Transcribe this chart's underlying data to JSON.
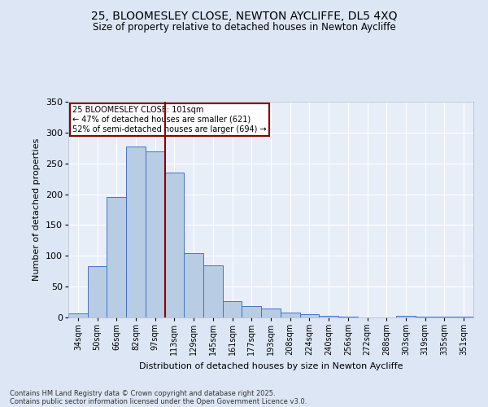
{
  "title_line1": "25, BLOOMESLEY CLOSE, NEWTON AYCLIFFE, DL5 4XQ",
  "title_line2": "Size of property relative to detached houses in Newton Aycliffe",
  "xlabel": "Distribution of detached houses by size in Newton Aycliffe",
  "ylabel": "Number of detached properties",
  "categories": [
    "34sqm",
    "50sqm",
    "66sqm",
    "82sqm",
    "97sqm",
    "113sqm",
    "129sqm",
    "145sqm",
    "161sqm",
    "177sqm",
    "193sqm",
    "208sqm",
    "224sqm",
    "240sqm",
    "256sqm",
    "272sqm",
    "288sqm",
    "303sqm",
    "319sqm",
    "335sqm",
    "351sqm"
  ],
  "values": [
    6,
    83,
    196,
    278,
    270,
    235,
    105,
    84,
    27,
    18,
    14,
    8,
    5,
    3,
    1,
    0,
    0,
    3,
    1,
    1,
    1
  ],
  "bar_color": "#b8cce4",
  "bar_edge_color": "#4472c4",
  "vline_x": 4.5,
  "vline_color": "#8B0000",
  "annotation_box_color": "#8B0000",
  "annotation_text_line1": "25 BLOOMESLEY CLOSE: 101sqm",
  "annotation_text_line2": "← 47% of detached houses are smaller (621)",
  "annotation_text_line3": "52% of semi-detached houses are larger (694) →",
  "ylim": [
    0,
    350
  ],
  "yticks": [
    0,
    50,
    100,
    150,
    200,
    250,
    300,
    350
  ],
  "footer_line1": "Contains HM Land Registry data © Crown copyright and database right 2025.",
  "footer_line2": "Contains public sector information licensed under the Open Government Licence v3.0.",
  "bg_color": "#dce6f5",
  "plot_bg_color": "#e8eef8"
}
